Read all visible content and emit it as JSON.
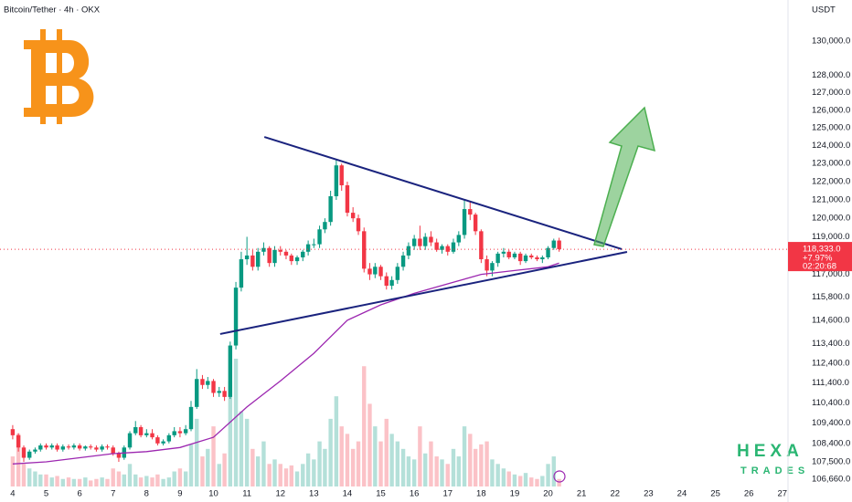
{
  "chart_data": {
    "type": "candlestick",
    "title": "Bitcoin/Tether · 4h · OKX",
    "currency": "USDT",
    "watermark": [
      "HEXA",
      "TRADES"
    ],
    "log_scale": true,
    "up_color": "#089981",
    "down_color": "#f23645",
    "xlim": [
      3.62,
      27.17
    ],
    "xticks": [
      4,
      5,
      6,
      7,
      8,
      9,
      10,
      11,
      12,
      13,
      14,
      15,
      16,
      17,
      18,
      19,
      20,
      21,
      22,
      23,
      24,
      25,
      26,
      27
    ],
    "ylim": [
      105570,
      132430
    ],
    "yticks": [
      {
        "value": 130000,
        "label": "130,000.0"
      },
      {
        "value": 128000,
        "label": "128,000.0"
      },
      {
        "value": 127000,
        "label": "127,000.0"
      },
      {
        "value": 126000,
        "label": "126,000.0"
      },
      {
        "value": 125000,
        "label": "125,000.0"
      },
      {
        "value": 124000,
        "label": "124,000.0"
      },
      {
        "value": 123000,
        "label": "123,000.0"
      },
      {
        "value": 122000,
        "label": "122,000.0"
      },
      {
        "value": 121000,
        "label": "121,000.0"
      },
      {
        "value": 120000,
        "label": "120,000.0"
      },
      {
        "value": 119000,
        "label": "119,000.0"
      },
      {
        "value": 117000,
        "label": "117,000.0"
      },
      {
        "value": 115800,
        "label": "115,800.0"
      },
      {
        "value": 114600,
        "label": "114,600.0"
      },
      {
        "value": 113400,
        "label": "113,400.0"
      },
      {
        "value": 112400,
        "label": "112,400.0"
      },
      {
        "value": 111400,
        "label": "111,400.0"
      },
      {
        "value": 110400,
        "label": "110,400.0"
      },
      {
        "value": 109400,
        "label": "109,400.0"
      },
      {
        "value": 108400,
        "label": "108,400.0"
      },
      {
        "value": 107500,
        "label": "107,500.0"
      },
      {
        "value": 106660,
        "label": "106,660.0"
      }
    ],
    "x": [
      4,
      4.17,
      4.33,
      4.5,
      4.67,
      4.83,
      5,
      5.17,
      5.33,
      5.5,
      5.67,
      5.83,
      6,
      6.17,
      6.33,
      6.5,
      6.67,
      6.83,
      7,
      7.17,
      7.33,
      7.5,
      7.67,
      7.83,
      8,
      8.17,
      8.33,
      8.5,
      8.67,
      8.83,
      9,
      9.17,
      9.33,
      9.5,
      9.67,
      9.83,
      10,
      10.17,
      10.33,
      10.5,
      10.67,
      10.83,
      11,
      11.17,
      11.33,
      11.5,
      11.67,
      11.83,
      12,
      12.17,
      12.33,
      12.5,
      12.67,
      12.83,
      13,
      13.17,
      13.33,
      13.5,
      13.67,
      13.83,
      14,
      14.17,
      14.33,
      14.5,
      14.67,
      14.83,
      15,
      15.17,
      15.33,
      15.5,
      15.67,
      15.83,
      16,
      16.17,
      16.33,
      16.5,
      16.67,
      16.83,
      17,
      17.17,
      17.33,
      17.5,
      17.67,
      17.83,
      18,
      18.17,
      18.33,
      18.5,
      18.67,
      18.83,
      19,
      19.17,
      19.33,
      19.5,
      19.67,
      19.83,
      20,
      20.17,
      20.33
    ],
    "open": [
      109100,
      108800,
      108200,
      107700,
      108000,
      108100,
      108300,
      108200,
      108300,
      108100,
      108250,
      108200,
      108300,
      108150,
      108250,
      108200,
      108100,
      108250,
      108200,
      107900,
      107700,
      108200,
      108900,
      109200,
      108800,
      108900,
      108700,
      108400,
      108500,
      108800,
      109000,
      108900,
      109100,
      110200,
      111600,
      111300,
      111500,
      110900,
      111000,
      110700,
      113300,
      116300,
      117800,
      118000,
      117400,
      118200,
      118400,
      117600,
      118300,
      118200,
      118000,
      117700,
      117900,
      118200,
      118600,
      118600,
      119400,
      119800,
      121200,
      122900,
      121800,
      120300,
      120000,
      119300,
      117300,
      117000,
      117400,
      116900,
      116400,
      116700,
      117400,
      118000,
      118500,
      118900,
      118500,
      119000,
      118700,
      118300,
      118500,
      118200,
      118700,
      119100,
      120500,
      120200,
      119300,
      117800,
      117200,
      117600,
      118100,
      118200,
      117900,
      118100,
      117700,
      118000,
      117900,
      117800,
      117900,
      118400,
      118800
    ],
    "high": [
      109300,
      108900,
      108300,
      108100,
      108200,
      108400,
      108400,
      108400,
      108400,
      108350,
      108350,
      108400,
      108400,
      108300,
      108350,
      108300,
      108350,
      108350,
      108300,
      108000,
      108300,
      109000,
      109500,
      109300,
      109100,
      109100,
      108800,
      108600,
      108900,
      109200,
      109200,
      109300,
      110500,
      112100,
      111800,
      111700,
      111600,
      111200,
      111200,
      113500,
      116600,
      118200,
      119000,
      118300,
      118400,
      118700,
      118500,
      118500,
      118500,
      118300,
      118100,
      118000,
      118300,
      118800,
      118900,
      119600,
      120000,
      121500,
      123200,
      123000,
      122000,
      120600,
      120200,
      119500,
      117600,
      117600,
      117500,
      117100,
      116900,
      117600,
      118200,
      118700,
      119100,
      119600,
      119200,
      119300,
      118900,
      118600,
      118600,
      118900,
      119300,
      121000,
      120900,
      120300,
      119400,
      118000,
      117700,
      118200,
      118400,
      118300,
      118200,
      118200,
      118100,
      118100,
      118000,
      118000,
      118500,
      118900,
      118950
    ],
    "low": [
      108600,
      108000,
      107500,
      107600,
      107900,
      108000,
      108100,
      108100,
      108000,
      108000,
      108100,
      108100,
      108050,
      108050,
      108100,
      108000,
      108000,
      108100,
      107800,
      107500,
      107600,
      108100,
      108800,
      108700,
      108700,
      108600,
      108300,
      108300,
      108400,
      108700,
      108700,
      108800,
      109000,
      110100,
      111100,
      111100,
      110700,
      110700,
      110500,
      110600,
      113100,
      116100,
      117500,
      117200,
      117200,
      118000,
      117400,
      117400,
      118000,
      117800,
      117500,
      117500,
      117700,
      118000,
      118400,
      118400,
      119200,
      119600,
      121000,
      121500,
      120100,
      119800,
      119100,
      117100,
      116700,
      116800,
      116700,
      116200,
      116200,
      116500,
      117200,
      117800,
      118300,
      118300,
      118300,
      118500,
      118200,
      118100,
      118000,
      118100,
      118500,
      118900,
      119900,
      119100,
      117600,
      116900,
      116900,
      117400,
      117900,
      117800,
      117800,
      117500,
      117600,
      117800,
      117700,
      117600,
      117800,
      118300,
      118200
    ],
    "close": [
      108800,
      108200,
      107700,
      108000,
      108100,
      108300,
      108200,
      108300,
      108100,
      108250,
      108200,
      108300,
      108150,
      108250,
      108200,
      108100,
      108250,
      108200,
      107900,
      107700,
      108200,
      108900,
      109200,
      108800,
      108900,
      108700,
      108400,
      108500,
      108800,
      109000,
      108900,
      109100,
      110200,
      111600,
      111300,
      111500,
      110900,
      111000,
      110700,
      113300,
      116300,
      117800,
      118000,
      117400,
      118200,
      118400,
      117600,
      118300,
      118200,
      118000,
      117700,
      117900,
      118200,
      118600,
      118600,
      119400,
      119800,
      121200,
      122900,
      121800,
      120300,
      120000,
      119300,
      117300,
      117000,
      117400,
      116900,
      116400,
      116700,
      117400,
      118000,
      118500,
      118900,
      118500,
      119000,
      118700,
      118300,
      118500,
      118200,
      118700,
      119100,
      120500,
      120200,
      119300,
      117800,
      117200,
      117600,
      118100,
      118200,
      117900,
      118100,
      117700,
      118000,
      117900,
      117800,
      117900,
      118400,
      118800,
      118333
    ],
    "volume": [
      20,
      35,
      15,
      12,
      10,
      8,
      8,
      6,
      7,
      5,
      6,
      5,
      5,
      6,
      4,
      5,
      6,
      5,
      12,
      10,
      8,
      15,
      8,
      6,
      7,
      6,
      8,
      5,
      6,
      10,
      12,
      10,
      28,
      45,
      20,
      25,
      40,
      15,
      22,
      70,
      85,
      50,
      45,
      25,
      20,
      30,
      15,
      18,
      15,
      12,
      14,
      10,
      15,
      22,
      18,
      30,
      25,
      45,
      60,
      40,
      35,
      25,
      30,
      80,
      55,
      40,
      30,
      45,
      35,
      30,
      25,
      20,
      18,
      40,
      22,
      30,
      20,
      18,
      15,
      25,
      20,
      40,
      35,
      25,
      28,
      30,
      18,
      15,
      12,
      10,
      8,
      7,
      9,
      6,
      5,
      7,
      15,
      20,
      5
    ],
    "ma": {
      "color": "#9c27b0",
      "x": [
        4,
        5,
        6,
        7,
        8,
        9,
        10,
        11,
        12,
        13,
        14,
        15,
        16,
        17,
        18,
        19,
        20,
        20.33
      ],
      "values": [
        107400,
        107500,
        107700,
        107900,
        108000,
        108200,
        108700,
        110200,
        111500,
        112900,
        114600,
        115400,
        116000,
        116500,
        117000,
        117200,
        117400,
        117600
      ]
    },
    "trendlines": [
      {
        "color": "#1a237e",
        "x": [
          11.52,
          22.2
        ],
        "values": [
          124490,
          118340
        ]
      },
      {
        "color": "#1a237e",
        "x": [
          10.2,
          22.36
        ],
        "values": [
          113890,
          118190
        ]
      }
    ],
    "last_price": {
      "value": 118333,
      "label": "118,333.0",
      "change": "+7.97%",
      "countdown": "02:20:68"
    }
  }
}
